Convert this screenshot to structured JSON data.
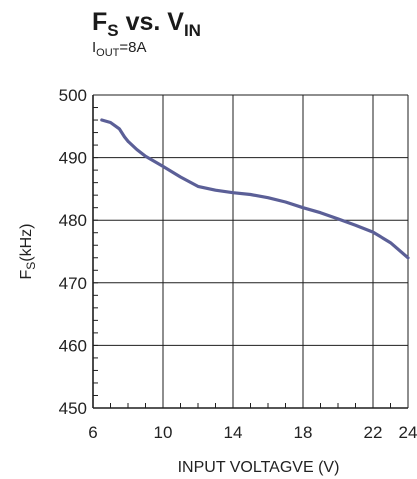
{
  "chart_data": {
    "type": "line",
    "title": {
      "main": "F",
      "main_sub": "S",
      "mid": " vs. V",
      "mid_sub": "IN"
    },
    "subtitle": {
      "main": "I",
      "main_sub": "OUT",
      "rest": "=8A"
    },
    "xlabel": "INPUT VOLTAGVE (V)",
    "ylabel": {
      "main": "F",
      "sub": "S",
      "rest": "(kHz)"
    },
    "xlim": [
      6,
      24
    ],
    "ylim": [
      450,
      500
    ],
    "xticks": [
      6,
      10,
      14,
      18,
      22,
      24
    ],
    "yticks": [
      450,
      460,
      470,
      480,
      490,
      500
    ],
    "grid": true,
    "line_color": "#5b5f97",
    "series": [
      {
        "x": [
          6.5,
          7.0,
          7.5,
          7.8,
          8.0,
          8.5,
          9.0,
          10.0,
          11.0,
          12.0,
          13.0,
          14.0,
          15.0,
          16.0,
          17.0,
          18.0,
          19.0,
          20.0,
          21.0,
          22.0,
          23.0,
          24.0
        ],
        "y": [
          496.0,
          495.6,
          494.6,
          493.3,
          492.6,
          491.3,
          490.2,
          488.6,
          486.9,
          485.4,
          484.8,
          484.4,
          484.1,
          483.6,
          482.9,
          482.0,
          481.2,
          480.2,
          479.2,
          478.1,
          476.4,
          474.0
        ]
      }
    ]
  }
}
